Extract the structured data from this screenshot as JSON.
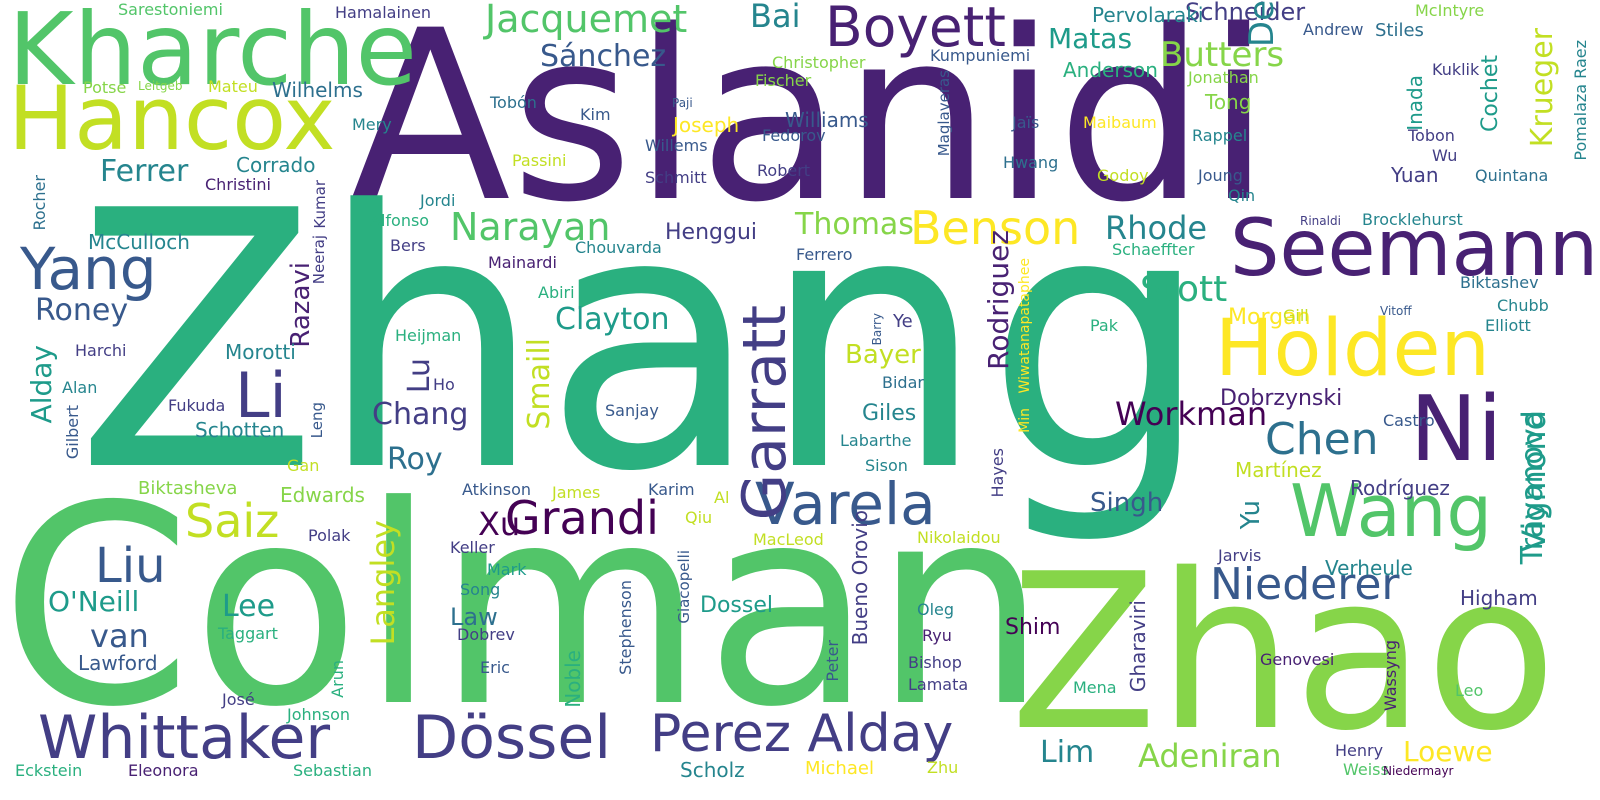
{
  "palette": {
    "indigo": "#440154",
    "purple": "#482173",
    "violet": "#433e85",
    "slate": "#38598c",
    "steel": "#2d708e",
    "teal": "#25858e",
    "sea": "#1e9b8a",
    "jade": "#2ab07f",
    "green": "#52c569",
    "lime": "#86d549",
    "yellowgreen": "#c2df23",
    "yellow": "#fde725"
  },
  "words": [
    {
      "text": "Aslanidi",
      "c": "purple"
    },
    {
      "text": "Zhang",
      "c": "jade"
    },
    {
      "text": "Colman",
      "c": "green"
    },
    {
      "text": "Zhao",
      "c": "lime"
    },
    {
      "text": "Kharche",
      "c": "green"
    },
    {
      "text": "Hancox",
      "c": "yellowgreen"
    },
    {
      "text": "Seemann",
      "c": "purple"
    },
    {
      "text": "Holden",
      "c": "yellow"
    },
    {
      "text": "Ni",
      "c": "purple"
    },
    {
      "text": "Wang",
      "c": "green"
    },
    {
      "text": "Whittaker",
      "c": "violet"
    },
    {
      "text": "Dössel",
      "c": "violet"
    },
    {
      "text": "Perez Alday",
      "c": "violet"
    },
    {
      "text": "Boyett",
      "c": "purple"
    },
    {
      "text": "Varela",
      "c": "slate"
    },
    {
      "text": "Garratt",
      "c": "violet"
    },
    {
      "text": "Benson",
      "c": "yellow"
    },
    {
      "text": "Grandi",
      "c": "indigo"
    },
    {
      "text": "Yang",
      "c": "slate"
    },
    {
      "text": "Li",
      "c": "violet"
    },
    {
      "text": "Chen",
      "c": "steel"
    },
    {
      "text": "Liu",
      "c": "slate"
    },
    {
      "text": "Saiz",
      "c": "yellowgreen"
    },
    {
      "text": "Niederer",
      "c": "slate"
    },
    {
      "text": "Jacquemet",
      "c": "green"
    },
    {
      "text": "Narayan",
      "c": "green"
    },
    {
      "text": "Rhode",
      "c": "teal"
    },
    {
      "text": "Stott",
      "c": "jade"
    },
    {
      "text": "Workman",
      "c": "indigo"
    },
    {
      "text": "Trayanova",
      "c": "sea"
    },
    {
      "text": "Vigmond",
      "c": "sea"
    },
    {
      "text": "Langley",
      "c": "yellowgreen"
    },
    {
      "text": "Smaill",
      "c": "yellowgreen"
    },
    {
      "text": "Rodriguez",
      "c": "purple"
    },
    {
      "text": "Krueger",
      "c": "yellowgreen"
    },
    {
      "text": "Matas",
      "c": "sea"
    },
    {
      "text": "Butters",
      "c": "lime"
    },
    {
      "text": "Sánchez",
      "c": "slate"
    },
    {
      "text": "Thomas",
      "c": "lime"
    },
    {
      "text": "Clayton",
      "c": "sea"
    },
    {
      "text": "Chang",
      "c": "violet"
    },
    {
      "text": "Lu",
      "c": "violet"
    },
    {
      "text": "Roy",
      "c": "steel"
    },
    {
      "text": "Xu",
      "c": "indigo"
    },
    {
      "text": "Razavi",
      "c": "purple"
    },
    {
      "text": "Roney",
      "c": "slate"
    },
    {
      "text": "Alday",
      "c": "sea"
    },
    {
      "text": "Ferrer",
      "c": "teal"
    },
    {
      "text": "Lee",
      "c": "sea"
    },
    {
      "text": "van",
      "c": "slate"
    },
    {
      "text": "O'Neill",
      "c": "sea"
    },
    {
      "text": "Lim",
      "c": "teal"
    },
    {
      "text": "Adeniran",
      "c": "lime"
    },
    {
      "text": "Loewe",
      "c": "yellow"
    },
    {
      "text": "Singh",
      "c": "slate"
    },
    {
      "text": "Dobrzynski",
      "c": "purple"
    },
    {
      "text": "Bayer",
      "c": "yellowgreen"
    },
    {
      "text": "Yu",
      "c": "teal"
    },
    {
      "text": "Bai",
      "c": "teal"
    },
    {
      "text": "Schneider",
      "c": "violet"
    },
    {
      "text": "De",
      "c": "teal"
    },
    {
      "text": "Morgan",
      "c": "yellow"
    },
    {
      "text": "Giles",
      "c": "teal"
    },
    {
      "text": "Law",
      "c": "steel"
    },
    {
      "text": "Rodríguez",
      "c": "violet"
    },
    {
      "text": "Martínez",
      "c": "yellowgreen"
    },
    {
      "text": "Verheule",
      "c": "teal"
    },
    {
      "text": "Higham",
      "c": "violet"
    },
    {
      "text": "Shim",
      "c": "indigo"
    },
    {
      "text": "Dossel",
      "c": "sea"
    },
    {
      "text": "Scholz",
      "c": "teal"
    },
    {
      "text": "Gharaviri",
      "c": "violet"
    },
    {
      "text": "Noble",
      "c": "jade"
    },
    {
      "text": "Bueno Orovio",
      "c": "violet"
    },
    {
      "text": "Cochet",
      "c": "sea"
    },
    {
      "text": "Inada",
      "c": "sea"
    },
    {
      "text": "Henggui",
      "c": "violet"
    },
    {
      "text": "Anderson",
      "c": "jade"
    },
    {
      "text": "Pervolaraki",
      "c": "teal"
    },
    {
      "text": "Wilhelms",
      "c": "steel"
    },
    {
      "text": "Corrado",
      "c": "teal"
    },
    {
      "text": "McCulloch",
      "c": "teal"
    },
    {
      "text": "Morotti",
      "c": "teal"
    },
    {
      "text": "Schotten",
      "c": "teal"
    },
    {
      "text": "Edwards",
      "c": "lime"
    },
    {
      "text": "Biktasheva",
      "c": "lime"
    },
    {
      "text": "Lawford",
      "c": "slate"
    },
    {
      "text": "Tong",
      "c": "lime"
    },
    {
      "text": "Williams",
      "c": "slate"
    },
    {
      "text": "Joseph",
      "c": "yellow"
    },
    {
      "text": "Stiles",
      "c": "steel"
    },
    {
      "text": "McIntyre",
      "c": "lime"
    },
    {
      "text": "Pomalaza Raez",
      "c": "teal"
    },
    {
      "text": "Sarestoniemi",
      "c": "green"
    },
    {
      "text": "Hamalainen",
      "c": "violet"
    },
    {
      "text": "Christopher",
      "c": "lime"
    },
    {
      "text": "Fischer",
      "c": "lime"
    },
    {
      "text": "Kumpuniemi",
      "c": "slate"
    },
    {
      "text": "Andrew",
      "c": "slate"
    },
    {
      "text": "Jonathan",
      "c": "lime"
    },
    {
      "text": "Kuklik",
      "c": "violet"
    },
    {
      "text": "Potse",
      "c": "lime"
    },
    {
      "text": "Leitgeb",
      "c": "lime"
    },
    {
      "text": "Mateu",
      "c": "yellowgreen"
    },
    {
      "text": "Tobón",
      "c": "steel"
    },
    {
      "text": "Paji",
      "c": "slate"
    },
    {
      "text": "Kim",
      "c": "slate"
    },
    {
      "text": "Mery",
      "c": "teal"
    },
    {
      "text": "Fedorov",
      "c": "slate"
    },
    {
      "text": "Willems",
      "c": "slate"
    },
    {
      "text": "Passini",
      "c": "yellowgreen"
    },
    {
      "text": "Schmitt",
      "c": "violet"
    },
    {
      "text": "Robert",
      "c": "violet"
    },
    {
      "text": "Jaïs",
      "c": "slate"
    },
    {
      "text": "Maibaum",
      "c": "yellow"
    },
    {
      "text": "Rappel",
      "c": "teal"
    },
    {
      "text": "Tobon",
      "c": "violet"
    },
    {
      "text": "Wu",
      "c": "violet"
    },
    {
      "text": "Quintana",
      "c": "steel"
    },
    {
      "text": "Hwang",
      "c": "steel"
    },
    {
      "text": "Godoy",
      "c": "yellowgreen"
    },
    {
      "text": "Joung",
      "c": "slate"
    },
    {
      "text": "Qin",
      "c": "teal"
    },
    {
      "text": "Yuan",
      "c": "violet"
    },
    {
      "text": "Christini",
      "c": "purple"
    },
    {
      "text": "Rocher",
      "c": "steel"
    },
    {
      "text": "Maglaveras",
      "c": "slate"
    },
    {
      "text": "Jordi",
      "c": "teal"
    },
    {
      "text": "Alfonso",
      "c": "jade"
    },
    {
      "text": "Bers",
      "c": "violet"
    },
    {
      "text": "Kumar",
      "c": "violet"
    },
    {
      "text": "Neeraj",
      "c": "violet"
    },
    {
      "text": "Chouvarda",
      "c": "teal"
    },
    {
      "text": "Mainardi",
      "c": "purple"
    },
    {
      "text": "Ferrero",
      "c": "slate"
    },
    {
      "text": "Abiri",
      "c": "jade"
    },
    {
      "text": "Rinaldi",
      "c": "violet"
    },
    {
      "text": "Brocklehurst",
      "c": "teal"
    },
    {
      "text": "Schaeffter",
      "c": "jade"
    },
    {
      "text": "Biktashev",
      "c": "steel"
    },
    {
      "text": "Chubb",
      "c": "teal"
    },
    {
      "text": "Elliott",
      "c": "teal"
    },
    {
      "text": "Gill",
      "c": "yellowgreen"
    },
    {
      "text": "Vitoff",
      "c": "slate"
    },
    {
      "text": "Pak",
      "c": "jade"
    },
    {
      "text": "Wiwatanapataphee",
      "c": "yellow"
    },
    {
      "text": "Barry",
      "c": "slate"
    },
    {
      "text": "Ye",
      "c": "violet"
    },
    {
      "text": "Bidar",
      "c": "steel"
    },
    {
      "text": "Heijman",
      "c": "jade"
    },
    {
      "text": "Harchi",
      "c": "violet"
    },
    {
      "text": "Alan",
      "c": "teal"
    },
    {
      "text": "Ho",
      "c": "violet"
    },
    {
      "text": "Fukuda",
      "c": "violet"
    },
    {
      "text": "Sanjay",
      "c": "slate"
    },
    {
      "text": "Gilbert",
      "c": "slate"
    },
    {
      "text": "Leng",
      "c": "slate"
    },
    {
      "text": "Gan",
      "c": "yellowgreen"
    },
    {
      "text": "Labarthe",
      "c": "teal"
    },
    {
      "text": "Sison",
      "c": "teal"
    },
    {
      "text": "Castro",
      "c": "slate"
    },
    {
      "text": "Hayes",
      "c": "violet"
    },
    {
      "text": "Min",
      "c": "yellow"
    },
    {
      "text": "Atkinson",
      "c": "slate"
    },
    {
      "text": "James",
      "c": "yellowgreen"
    },
    {
      "text": "Karim",
      "c": "slate"
    },
    {
      "text": "Al",
      "c": "yellowgreen"
    },
    {
      "text": "Polak",
      "c": "violet"
    },
    {
      "text": "Qiu",
      "c": "yellowgreen"
    },
    {
      "text": "Keller",
      "c": "violet"
    },
    {
      "text": "MacLeod",
      "c": "yellowgreen"
    },
    {
      "text": "Nikolaidou",
      "c": "yellowgreen"
    },
    {
      "text": "Mark",
      "c": "sea"
    },
    {
      "text": "Song",
      "c": "teal"
    },
    {
      "text": "Jarvis",
      "c": "violet"
    },
    {
      "text": "Dobrev",
      "c": "violet"
    },
    {
      "text": "Oleg",
      "c": "teal"
    },
    {
      "text": "Taggart",
      "c": "jade"
    },
    {
      "text": "Ryu",
      "c": "purple"
    },
    {
      "text": "Giacopelli",
      "c": "slate"
    },
    {
      "text": "Stephenson",
      "c": "slate"
    },
    {
      "text": "Eric",
      "c": "slate"
    },
    {
      "text": "Bishop",
      "c": "violet"
    },
    {
      "text": "Genovesi",
      "c": "purple"
    },
    {
      "text": "Peter",
      "c": "slate"
    },
    {
      "text": "Lamata",
      "c": "violet"
    },
    {
      "text": "Wassyng",
      "c": "purple"
    },
    {
      "text": "Mena",
      "c": "jade"
    },
    {
      "text": "Leo",
      "c": "green"
    },
    {
      "text": "José",
      "c": "violet"
    },
    {
      "text": "Arun",
      "c": "jade"
    },
    {
      "text": "Johnson",
      "c": "jade"
    },
    {
      "text": "Henry",
      "c": "violet"
    },
    {
      "text": "Weiss",
      "c": "green"
    },
    {
      "text": "Niedermayr",
      "c": "indigo"
    },
    {
      "text": "Eckstein",
      "c": "jade"
    },
    {
      "text": "Eleonora",
      "c": "purple"
    },
    {
      "text": "Sebastian",
      "c": "jade"
    },
    {
      "text": "Michael",
      "c": "yellow"
    },
    {
      "text": "Zhu",
      "c": "yellowgreen"
    }
  ]
}
